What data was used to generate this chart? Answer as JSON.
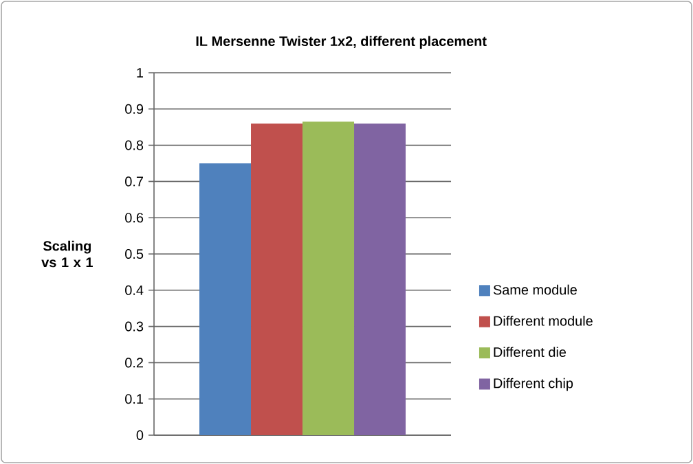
{
  "chart_data": {
    "type": "bar",
    "title": "IL Mersenne Twister 1x2, different placement",
    "ylabel": "Scaling vs 1 x 1",
    "categories": [
      null
    ],
    "series": [
      {
        "name": "Same module",
        "color": "#4f81bd",
        "values": [
          0.75
        ]
      },
      {
        "name": "Different module",
        "color": "#c0504d",
        "values": [
          0.86
        ]
      },
      {
        "name": "Different die",
        "color": "#9bbb59",
        "values": [
          0.865
        ]
      },
      {
        "name": "Different chip",
        "color": "#8064a2",
        "values": [
          0.86
        ]
      }
    ],
    "ylim": [
      0,
      1
    ],
    "yticks": [
      0,
      0.1,
      0.2,
      0.3,
      0.4,
      0.5,
      0.6,
      0.7,
      0.8,
      0.9,
      1
    ],
    "grid": "y",
    "legend": "right"
  }
}
